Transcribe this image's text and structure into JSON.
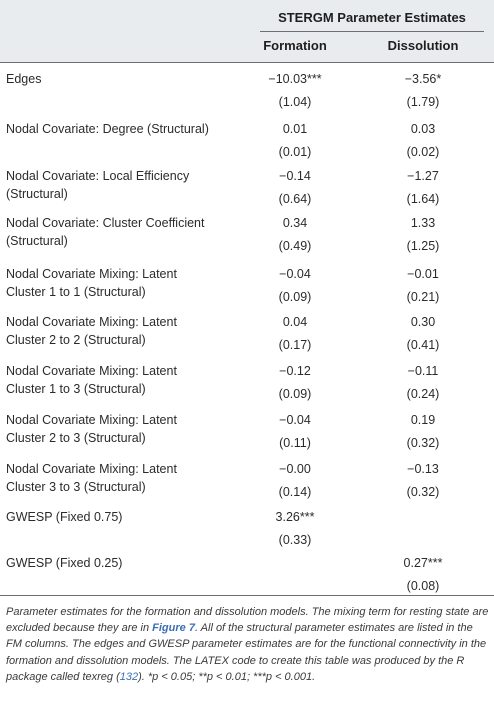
{
  "header": {
    "group_title": "STERGM Parameter Estimates",
    "col_formation": "Formation",
    "col_dissolution": "Dissolution"
  },
  "rows": [
    {
      "label": "Edges",
      "formation": "−10.03***",
      "formation_se": "(1.04)",
      "dissolution": "−3.56*",
      "dissolution_se": "(1.79)"
    },
    {
      "label": "Nodal Covariate: Degree (Structural)",
      "formation": "0.01",
      "formation_se": "(0.01)",
      "dissolution": "0.03",
      "dissolution_se": "(0.02)"
    },
    {
      "label": "Nodal Covariate: Local Efficiency (Structural)",
      "formation": "−0.14",
      "formation_se": "(0.64)",
      "dissolution": "−1.27",
      "dissolution_se": "(1.64)"
    },
    {
      "label": "Nodal Covariate: Cluster Coefficient (Structural)",
      "formation": "0.34",
      "formation_se": "(0.49)",
      "dissolution": "1.33",
      "dissolution_se": "(1.25)"
    },
    {
      "label": "Nodal Covariate Mixing: Latent Cluster 1 to 1 (Structural)",
      "formation": "−0.04",
      "formation_se": "(0.09)",
      "dissolution": "−0.01",
      "dissolution_se": "(0.21)"
    },
    {
      "label": "Nodal Covariate Mixing: Latent Cluster 2 to 2 (Structural)",
      "formation": "0.04",
      "formation_se": "(0.17)",
      "dissolution": "0.30",
      "dissolution_se": "(0.41)"
    },
    {
      "label": "Nodal Covariate Mixing: Latent Cluster 1 to 3 (Structural)",
      "formation": "−0.12",
      "formation_se": "(0.09)",
      "dissolution": "−0.11",
      "dissolution_se": "(0.24)"
    },
    {
      "label": "Nodal Covariate Mixing: Latent Cluster 2 to 3 (Structural)",
      "formation": "−0.04",
      "formation_se": "(0.11)",
      "dissolution": "0.19",
      "dissolution_se": "(0.32)"
    },
    {
      "label": "Nodal Covariate Mixing: Latent Cluster 3 to 3 (Structural)",
      "formation": "−0.00",
      "formation_se": "(0.14)",
      "dissolution": "−0.13",
      "dissolution_se": "(0.32)"
    },
    {
      "label": "GWESP (Fixed 0.75)",
      "formation": "3.26***",
      "formation_se": "(0.33)",
      "dissolution": "",
      "dissolution_se": ""
    },
    {
      "label": "GWESP (Fixed 0.25)",
      "formation": "",
      "formation_se": "",
      "dissolution": "0.27***",
      "dissolution_se": "(0.08)"
    }
  ],
  "caption": {
    "part1": "Parameter estimates for the formation and dissolution models. The mixing term for resting state are excluded because they are in ",
    "figure_ref": "Figure 7",
    "part2": ". All of the structural parameter estimates are listed in the FM columns. The edges and GWESP parameter estimates are for the functional connectivity in the formation and dissolution models. The LATEX code to create this table was produced by the R package called texreg (",
    "citation": "132",
    "part3": "). *p < 0.05; **p < 0.01; ***p < 0.001."
  }
}
